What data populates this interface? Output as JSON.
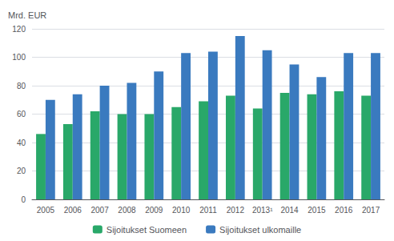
{
  "chart_data": {
    "type": "bar",
    "categories": [
      "2005",
      "2006",
      "2007",
      "2008",
      "2009",
      "2010",
      "2011",
      "2012",
      "2013¹",
      "2014",
      "2015",
      "2016",
      "2017"
    ],
    "series": [
      {
        "name": "Sijoitukset Suomeen",
        "color": "#29a869",
        "values": [
          46,
          53,
          62,
          60,
          60,
          65,
          69,
          73,
          64,
          75,
          74,
          76,
          73
        ]
      },
      {
        "name": "Sijoitukset ulkomaille",
        "color": "#3a7abf",
        "values": [
          70,
          74,
          80,
          82,
          90,
          103,
          104,
          115,
          105,
          95,
          86,
          103,
          103
        ]
      }
    ],
    "ylabel": "Mrd. EUR",
    "ylim": [
      0,
      120
    ],
    "yticks": [
      0,
      20,
      40,
      60,
      80,
      100,
      120
    ],
    "grid": true,
    "legend": "bottom"
  }
}
